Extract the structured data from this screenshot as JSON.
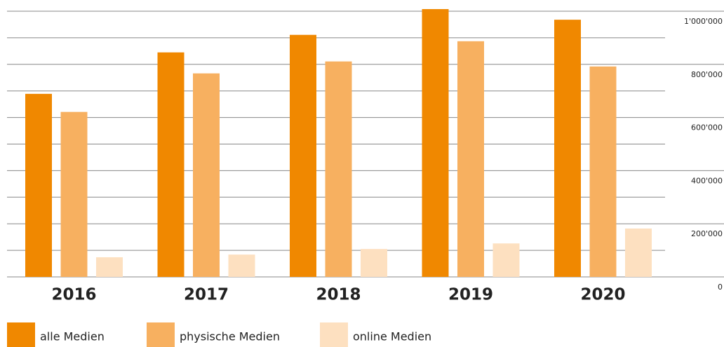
{
  "chart_data": {
    "type": "bar",
    "categories": [
      "2016",
      "2017",
      "2018",
      "2019",
      "2020"
    ],
    "series": [
      {
        "name": "alle Medien",
        "color": "#f08800",
        "values": [
          689000,
          845000,
          911000,
          1008000,
          968000
        ]
      },
      {
        "name": "physische Medien",
        "color": "#f7b060",
        "values": [
          621000,
          766000,
          811000,
          887000,
          792000
        ]
      },
      {
        "name": "online Medien",
        "color": "#fde0c0",
        "values": [
          74000,
          84000,
          105000,
          126000,
          182000
        ]
      }
    ],
    "ylim": [
      0,
      1000000
    ],
    "yticks": [
      0,
      {
        "value": 200000,
        "label": "200'000"
      },
      {
        "value": 400000,
        "label": "400'000"
      },
      {
        "value": 600000,
        "label": "600'000"
      },
      {
        "value": 800000,
        "label": "800'000"
      },
      {
        "value": 1000000,
        "label": "1'000'000"
      }
    ],
    "minor_yticks": [
      100000,
      300000,
      500000,
      700000,
      900000
    ],
    "grid": true,
    "legend": "bottom-left"
  }
}
